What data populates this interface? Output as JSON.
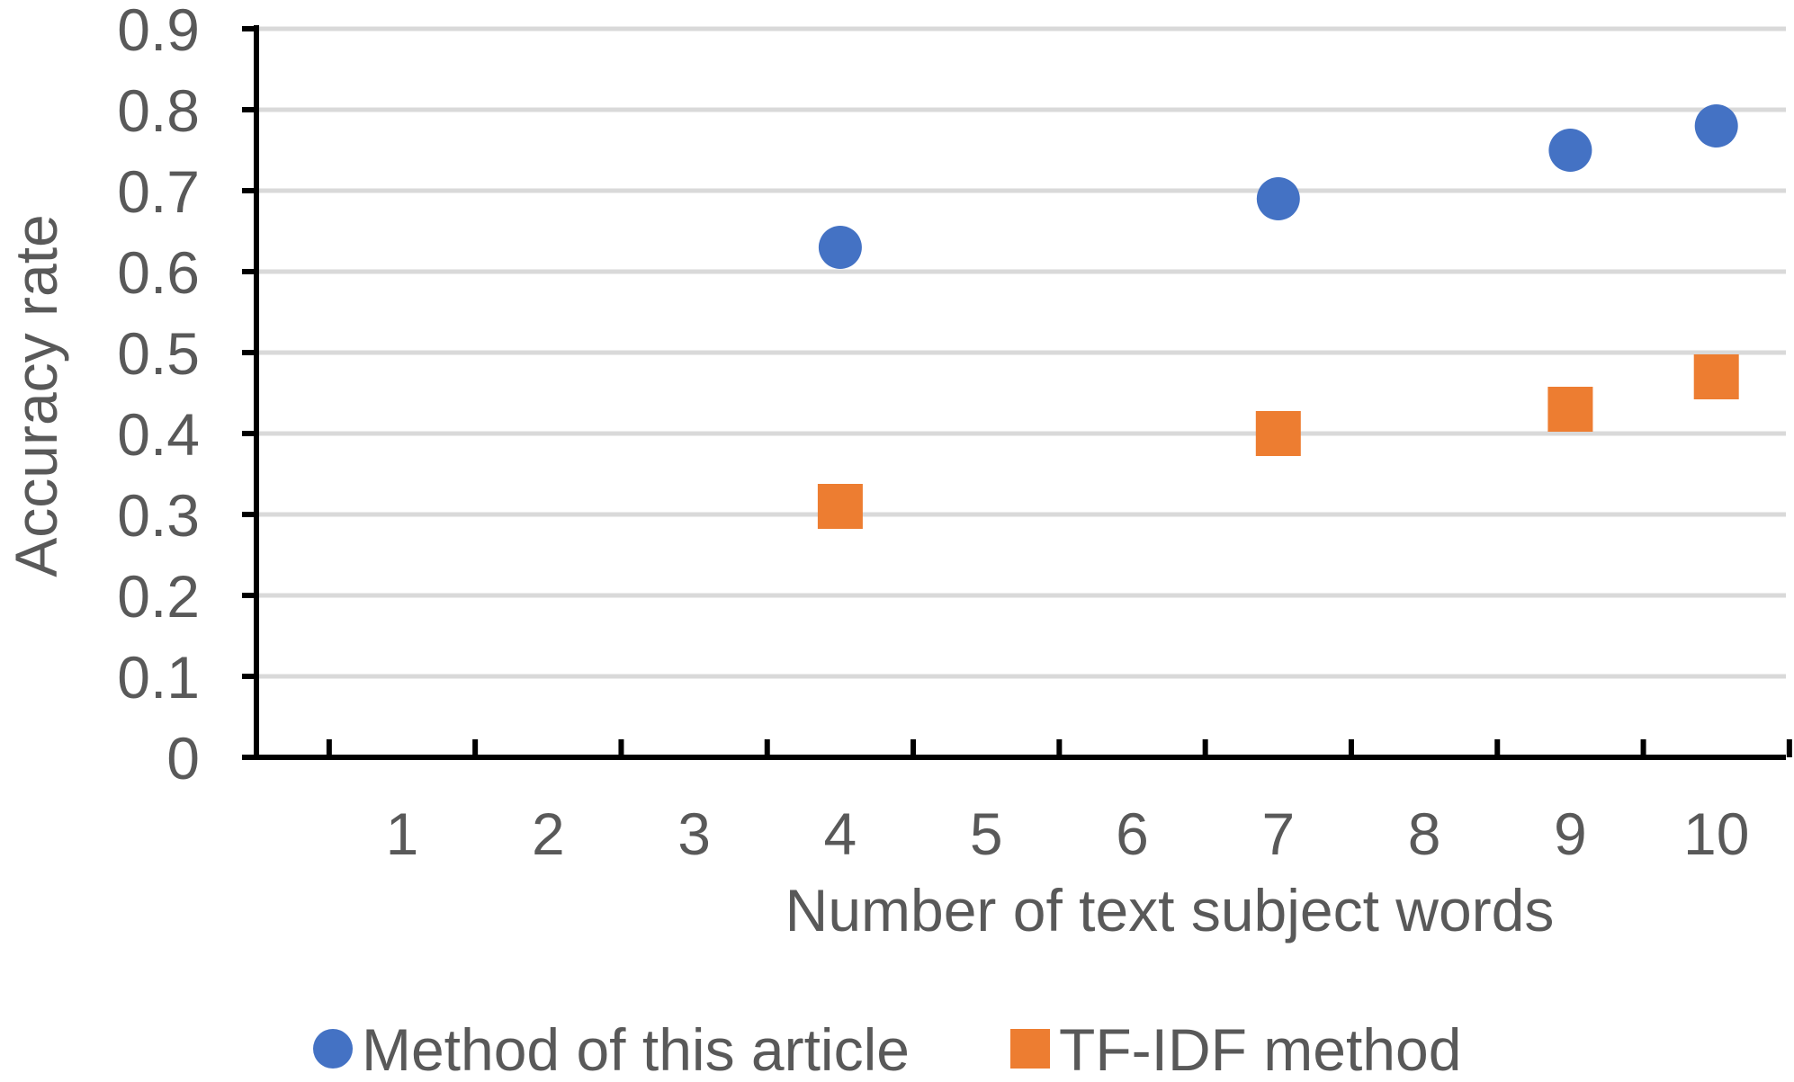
{
  "chart_data": {
    "type": "scatter",
    "title": "",
    "xlabel": "Number of text subject words",
    "ylabel": "Accuracy rate",
    "x_categories": [
      "1",
      "2",
      "3",
      "4",
      "5",
      "6",
      "7",
      "8",
      "9",
      "10"
    ],
    "yticks": [
      "0",
      "0.1",
      "0.2",
      "0.3",
      "0.4",
      "0.5",
      "0.6",
      "0.7",
      "0.8",
      "0.9"
    ],
    "ylim": [
      0,
      0.9
    ],
    "grid": true,
    "legend_position": "bottom",
    "series": [
      {
        "name": "Method of this article",
        "marker": "circle",
        "color": "#4472C4",
        "points": [
          {
            "x": 4,
            "y": 0.63
          },
          {
            "x": 7,
            "y": 0.69
          },
          {
            "x": 9,
            "y": 0.75
          },
          {
            "x": 10,
            "y": 0.78
          }
        ]
      },
      {
        "name": "TF-IDF method",
        "marker": "square",
        "color": "#ED7D31",
        "points": [
          {
            "x": 4,
            "y": 0.31
          },
          {
            "x": 7,
            "y": 0.4
          },
          {
            "x": 9,
            "y": 0.43
          },
          {
            "x": 10,
            "y": 0.47
          }
        ]
      }
    ]
  }
}
